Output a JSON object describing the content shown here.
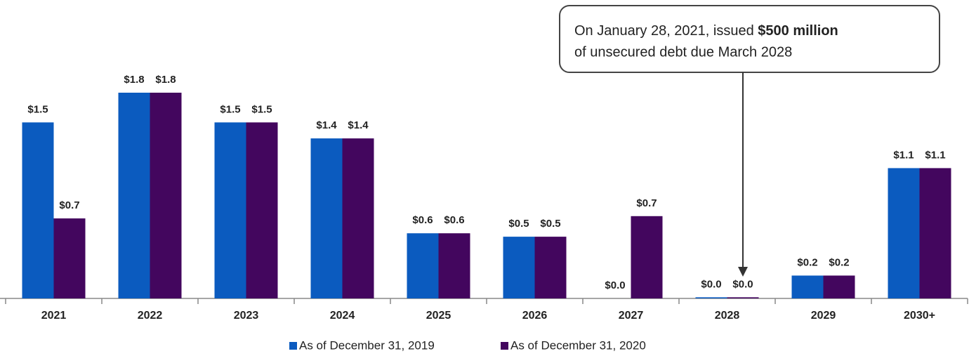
{
  "chart_data": {
    "type": "bar",
    "categories": [
      "2021",
      "2022",
      "2023",
      "2024",
      "2025",
      "2026",
      "2027",
      "2028",
      "2029",
      "2030+"
    ],
    "series": [
      {
        "name": "As of December 31, 2019",
        "color": "#0b5bbf",
        "values": [
          1.54,
          1.8,
          1.54,
          1.4,
          0.57,
          0.54,
          0,
          0.01,
          0.2,
          1.14
        ],
        "value_labels": [
          "$1.5",
          "$1.8",
          "$1.5",
          "$1.4",
          "$0.6",
          "$0.5",
          "$0.0",
          "$0.0",
          "$0.2",
          "$1.1"
        ]
      },
      {
        "name": "As of December 31, 2020",
        "color": "#43065e",
        "values": [
          0.7,
          1.8,
          1.54,
          1.4,
          0.57,
          0.54,
          0.72,
          0.01,
          0.2,
          1.14
        ],
        "value_labels": [
          "$0.7",
          "$1.8",
          "$1.5",
          "$1.4",
          "$0.6",
          "$0.5",
          "$0.7",
          "$0.0",
          "$0.2",
          "$1.1"
        ]
      }
    ],
    "annotation": [
      "On January 28, 2021, issued ",
      "$500 million",
      "of unsecured debt due March 2028"
    ],
    "legend": "bottom"
  }
}
